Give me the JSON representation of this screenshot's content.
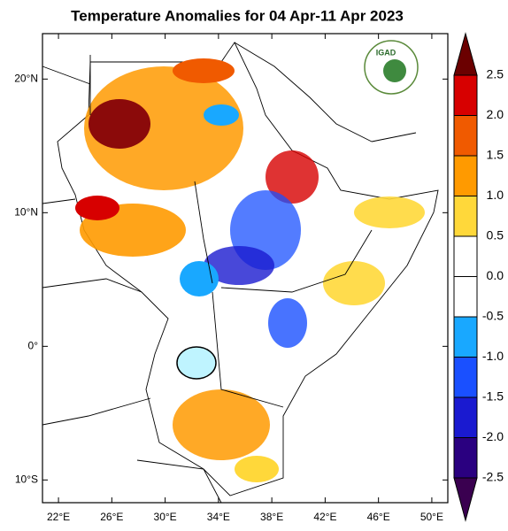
{
  "map": {
    "title": "Temperature Anomalies for 04 Apr-11 Apr 2023",
    "logo": "IGAD",
    "xlim": [
      20.8,
      51.2
    ],
    "ylim": [
      -11.7,
      23.4
    ],
    "xticks": [
      {
        "value": 22,
        "label": "22°E"
      },
      {
        "value": 26,
        "label": "26°E"
      },
      {
        "value": 30,
        "label": "30°E"
      },
      {
        "value": 34,
        "label": "34°E"
      },
      {
        "value": 38,
        "label": "38°E"
      },
      {
        "value": 42,
        "label": "42°E"
      },
      {
        "value": 46,
        "label": "46°E"
      },
      {
        "value": 50,
        "label": "50°E"
      }
    ],
    "yticks": [
      {
        "value": 20,
        "label": "20°N"
      },
      {
        "value": 10,
        "label": "10°N"
      },
      {
        "value": 0,
        "label": "0°"
      },
      {
        "value": -10,
        "label": "10°S"
      }
    ],
    "colorbar": {
      "levels": [
        {
          "value": 2.5,
          "label": "2.5"
        },
        {
          "value": 2.0,
          "label": "2.0"
        },
        {
          "value": 1.5,
          "label": "1.5"
        },
        {
          "value": 1.0,
          "label": "1.0"
        },
        {
          "value": 0.5,
          "label": "0.5"
        },
        {
          "value": 0.0,
          "label": "0.0"
        },
        {
          "value": -0.5,
          "label": "-0.5"
        },
        {
          "value": -1.0,
          "label": "-1.0"
        },
        {
          "value": -1.5,
          "label": "-1.5"
        },
        {
          "value": -2.0,
          "label": "-2.0"
        },
        {
          "value": -2.5,
          "label": "-2.5"
        }
      ],
      "colors": [
        "#6b0000",
        "#d70000",
        "#f05a00",
        "#ff9a00",
        "#ffd83a",
        "#ffffff",
        "#ffffff",
        "#19a8ff",
        "#1a50ff",
        "#1a1ad0",
        "#2a0080",
        "#3a0050"
      ]
    }
  }
}
